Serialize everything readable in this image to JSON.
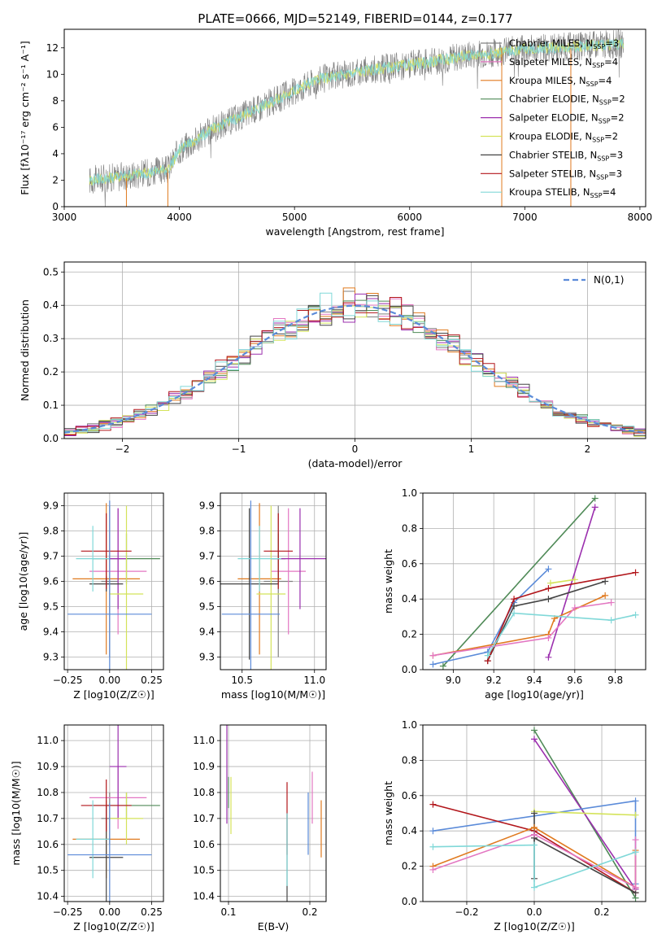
{
  "figure_title": "PLATE=0666, MJD=52149, FIBERID=0144, z=0.177",
  "palette": {
    "cb_miles": "#808080",
    "sp_miles": "#e377c2",
    "kr_miles": "#e07a1f",
    "cb_elodie": "#4f8a57",
    "sp_elodie": "#9b2fae",
    "kr_elodie": "#d4e35a",
    "cb_stelib": "#444444",
    "sp_stelib": "#b2161b",
    "kr_stelib": "#80d8d8",
    "normal": "#5b8bd9"
  },
  "legend_top": [
    {
      "label": "Chabrier MILES, N",
      "sub": "SSP",
      "tail": "=3",
      "key": "cb_miles"
    },
    {
      "label": "Salpeter MILES, N",
      "sub": "SSP",
      "tail": "=4",
      "key": "sp_miles"
    },
    {
      "label": "Kroupa MILES, N",
      "sub": "SSP",
      "tail": "=4",
      "key": "kr_miles"
    },
    {
      "label": "Chabrier ELODIE, N",
      "sub": "SSP",
      "tail": "=2",
      "key": "cb_elodie"
    },
    {
      "label": "Salpeter ELODIE, N",
      "sub": "SSP",
      "tail": "=2",
      "key": "sp_elodie"
    },
    {
      "label": "Kroupa ELODIE, N",
      "sub": "SSP",
      "tail": "=2",
      "key": "kr_elodie"
    },
    {
      "label": "Chabrier STELIB, N",
      "sub": "SSP",
      "tail": "=3",
      "key": "cb_stelib"
    },
    {
      "label": "Salpeter STELIB, N",
      "sub": "SSP",
      "tail": "=3",
      "key": "sp_stelib"
    },
    {
      "label": "Kroupa STELIB, N",
      "sub": "SSP",
      "tail": "=4",
      "key": "kr_stelib"
    }
  ],
  "chart_data": [
    {
      "type": "line",
      "xlabel": "wavelength [Angstrom, rest frame]",
      "ylabel": "Flux [fλ10⁻¹⁷ erg cm⁻² s⁻¹ A⁻¹]",
      "xlim": [
        3000,
        8050
      ],
      "ylim": [
        0,
        13.4
      ],
      "xticks": [
        3000,
        4000,
        5000,
        6000,
        7000,
        8000
      ],
      "yticks": [
        0,
        2,
        4,
        6,
        8,
        10,
        12
      ],
      "data_range": [
        3220,
        7860
      ],
      "continuum_anchors": [
        [
          3220,
          2.0
        ],
        [
          3500,
          2.3
        ],
        [
          3900,
          2.8
        ],
        [
          4000,
          4.3
        ],
        [
          4300,
          5.9
        ],
        [
          4700,
          7.5
        ],
        [
          5200,
          9.6
        ],
        [
          5700,
          10.4
        ],
        [
          6000,
          10.7
        ],
        [
          6500,
          11.4
        ],
        [
          7000,
          11.9
        ],
        [
          7860,
          12.3
        ]
      ],
      "note_lines": [
        [
          6800,
          0
        ],
        [
          7400,
          0
        ]
      ]
    },
    {
      "type": "histogram",
      "xlabel": "(data-model)/error",
      "ylabel": "Normed distribution",
      "xlim": [
        -2.5,
        2.5
      ],
      "ylim": [
        0,
        0.53
      ],
      "xticks": [
        -2,
        -1,
        0,
        1,
        2
      ],
      "yticks": [
        0.0,
        0.1,
        0.2,
        0.3,
        0.4,
        0.5
      ],
      "bin_width": 0.1,
      "legend_label": "N(0,1)",
      "grid": true
    },
    {
      "type": "scatter",
      "xlabel": "Z [log10(Z/Z☉)]",
      "ylabel": "age  [log10(age/yr)]",
      "xlim": [
        -0.27,
        0.32
      ],
      "ylim": [
        9.25,
        9.95
      ],
      "xticks": [
        -0.25,
        0.0,
        0.25
      ],
      "yticks": [
        9.3,
        9.4,
        9.5,
        9.6,
        9.7,
        9.8,
        9.9
      ],
      "grid": true,
      "points": [
        {
          "key": "cb_miles",
          "x": 0.0,
          "xe": 0.05,
          "y": 9.6,
          "ye": 0.3
        },
        {
          "key": "sp_miles",
          "x": 0.05,
          "xe": 0.17,
          "y": 9.64,
          "ye": 0.25
        },
        {
          "key": "kr_miles",
          "x": -0.02,
          "xe": 0.2,
          "y": 9.61,
          "ye": 0.3
        },
        {
          "key": "cb_elodie",
          "x": 0.1,
          "xe": 0.2,
          "y": 9.69,
          "ye": 0.1
        },
        {
          "key": "sp_elodie",
          "x": 0.05,
          "xe": 0.05,
          "y": 9.69,
          "ye": 0.2
        },
        {
          "key": "kr_elodie",
          "x": 0.1,
          "xe": 0.1,
          "y": 9.55,
          "ye": 0.35
        },
        {
          "key": "cb_stelib",
          "x": -0.02,
          "xe": 0.1,
          "y": 9.59,
          "ye": 0.03
        },
        {
          "key": "sp_stelib",
          "x": -0.02,
          "xe": 0.15,
          "y": 9.72,
          "ye": 0.15
        },
        {
          "key": "kr_stelib",
          "x": -0.1,
          "xe": 0.1,
          "y": 9.69,
          "ye": 0.13
        },
        {
          "key": "normal",
          "x": 0.0,
          "xe": 0.25,
          "y": 9.47,
          "ye": 0.45
        }
      ]
    },
    {
      "type": "scatter",
      "xlabel": "mass [log10(M/M☉)]",
      "ylabel": "",
      "xlim": [
        10.35,
        11.08
      ],
      "ylim": [
        9.25,
        9.95
      ],
      "xticks": [
        10.5,
        11.0
      ],
      "yticks": [
        9.3,
        9.4,
        9.5,
        9.6,
        9.7,
        9.8,
        9.9
      ],
      "grid": true,
      "points": [
        {
          "key": "cb_miles",
          "x": 10.75,
          "xe": 0.1,
          "y": 9.6,
          "ye": 0.3
        },
        {
          "key": "sp_miles",
          "x": 10.82,
          "xe": 0.12,
          "y": 9.64,
          "ye": 0.25
        },
        {
          "key": "kr_miles",
          "x": 10.62,
          "xe": 0.15,
          "y": 9.61,
          "ye": 0.3
        },
        {
          "key": "cb_elodie",
          "x": 10.75,
          "xe": 0.05,
          "y": 9.69,
          "ye": 0.1
        },
        {
          "key": "sp_elodie",
          "x": 10.9,
          "xe": 0.2,
          "y": 9.69,
          "ye": 0.2
        },
        {
          "key": "kr_elodie",
          "x": 10.7,
          "xe": 0.1,
          "y": 9.55,
          "ye": 0.35
        },
        {
          "key": "cb_stelib",
          "x": 10.55,
          "xe": 0.2,
          "y": 9.59,
          "ye": 0.3
        },
        {
          "key": "sp_stelib",
          "x": 10.75,
          "xe": 0.1,
          "y": 9.72,
          "ye": 0.15
        },
        {
          "key": "kr_stelib",
          "x": 10.62,
          "xe": 0.15,
          "y": 9.69,
          "ye": 0.13
        },
        {
          "key": "normal",
          "x": 10.56,
          "xe": 0.2,
          "y": 9.47,
          "ye": 0.45
        }
      ]
    },
    {
      "type": "line",
      "xlabel": "age  [log10(age/yr)]",
      "ylabel": "mass weight",
      "xlim": [
        8.85,
        9.95
      ],
      "ylim": [
        0,
        1
      ],
      "xticks": [
        9.0,
        9.2,
        9.4,
        9.6,
        9.8
      ],
      "yticks": [
        0.0,
        0.2,
        0.4,
        0.6,
        0.8,
        1.0
      ],
      "grid": true,
      "series": [
        {
          "key": "cb_elodie",
          "pts": [
            [
              8.95,
              0.02
            ],
            [
              9.7,
              0.97
            ]
          ]
        },
        {
          "key": "sp_elodie",
          "pts": [
            [
              9.47,
              0.07
            ],
            [
              9.7,
              0.92
            ]
          ]
        },
        {
          "key": "normal",
          "pts": [
            [
              8.9,
              0.03
            ],
            [
              9.17,
              0.1
            ],
            [
              9.3,
              0.38
            ],
            [
              9.47,
              0.57
            ]
          ]
        },
        {
          "key": "cb_stelib",
          "pts": [
            [
              9.17,
              0.05
            ],
            [
              9.3,
              0.36
            ],
            [
              9.47,
              0.4
            ],
            [
              9.75,
              0.5
            ]
          ]
        },
        {
          "key": "sp_stelib",
          "pts": [
            [
              9.17,
              0.05
            ],
            [
              9.3,
              0.4
            ],
            [
              9.47,
              0.46
            ],
            [
              9.9,
              0.55
            ]
          ]
        },
        {
          "key": "kr_elodie",
          "pts": [
            [
              9.48,
              0.49
            ],
            [
              9.6,
              0.51
            ]
          ]
        },
        {
          "key": "kr_miles",
          "pts": [
            [
              8.9,
              0.08
            ],
            [
              9.47,
              0.2
            ],
            [
              9.5,
              0.29
            ],
            [
              9.75,
              0.42
            ]
          ]
        },
        {
          "key": "sp_miles",
          "pts": [
            [
              8.9,
              0.08
            ],
            [
              9.47,
              0.18
            ],
            [
              9.6,
              0.35
            ],
            [
              9.78,
              0.38
            ]
          ]
        },
        {
          "key": "kr_stelib",
          "pts": [
            [
              9.17,
              0.08
            ],
            [
              9.3,
              0.32
            ],
            [
              9.78,
              0.28
            ],
            [
              9.9,
              0.31
            ]
          ]
        }
      ]
    },
    {
      "type": "scatter",
      "xlabel": "Z [log10(Z/Z☉)]",
      "ylabel": "mass [log10(M/M☉)]",
      "xlim": [
        -0.27,
        0.32
      ],
      "ylim": [
        10.38,
        11.06
      ],
      "xticks": [
        -0.25,
        0.0,
        0.25
      ],
      "yticks": [
        10.4,
        10.5,
        10.6,
        10.7,
        10.8,
        10.9,
        11.0
      ],
      "grid": true,
      "points": [
        {
          "key": "cb_miles",
          "x": 0.0,
          "xe": 0.05,
          "y": 10.7,
          "ye": 0.1
        },
        {
          "key": "sp_miles",
          "x": 0.05,
          "xe": 0.17,
          "y": 10.78,
          "ye": 0.12
        },
        {
          "key": "kr_miles",
          "x": -0.02,
          "xe": 0.2,
          "y": 10.62,
          "ye": 0.15
        },
        {
          "key": "cb_elodie",
          "x": 0.1,
          "xe": 0.2,
          "y": 10.75,
          "ye": 0.05
        },
        {
          "key": "sp_elodie",
          "x": 0.05,
          "xe": 0.05,
          "y": 10.9,
          "ye": 0.2
        },
        {
          "key": "kr_elodie",
          "x": 0.1,
          "xe": 0.1,
          "y": 10.7,
          "ye": 0.1
        },
        {
          "key": "cb_stelib",
          "x": -0.02,
          "xe": 0.1,
          "y": 10.55,
          "ye": 0.2
        },
        {
          "key": "sp_stelib",
          "x": -0.02,
          "xe": 0.15,
          "y": 10.75,
          "ye": 0.1
        },
        {
          "key": "kr_stelib",
          "x": -0.1,
          "xe": 0.1,
          "y": 10.62,
          "ye": 0.15
        },
        {
          "key": "normal",
          "x": 0.0,
          "xe": 0.25,
          "y": 10.56,
          "ye": 0.2
        }
      ]
    },
    {
      "type": "scatter",
      "xlabel": "E(B-V)",
      "ylabel": "",
      "xlim": [
        0.09,
        0.22
      ],
      "ylim": [
        10.38,
        11.06
      ],
      "xticks": [
        0.1,
        0.2
      ],
      "yticks": [
        10.4,
        10.5,
        10.6,
        10.7,
        10.8,
        10.9,
        11.0
      ],
      "grid": true,
      "points": [
        {
          "key": "sp_elodie",
          "x": 0.098,
          "xe": 0,
          "y": 10.9,
          "ye": 0.22
        },
        {
          "key": "cb_elodie",
          "x": 0.1,
          "xe": 0,
          "y": 10.8,
          "ye": 0.06
        },
        {
          "key": "kr_elodie",
          "x": 0.103,
          "xe": 0,
          "y": 10.75,
          "ye": 0.11
        },
        {
          "key": "cb_stelib",
          "x": 0.172,
          "xe": 0,
          "y": 10.55,
          "ye": 0.17
        },
        {
          "key": "sp_stelib",
          "x": 0.172,
          "xe": 0,
          "y": 10.7,
          "ye": 0.14
        },
        {
          "key": "kr_stelib",
          "x": 0.172,
          "xe": 0,
          "y": 10.58,
          "ye": 0.14
        },
        {
          "key": "normal",
          "x": 0.198,
          "xe": 0,
          "y": 10.68,
          "ye": 0.12
        },
        {
          "key": "sp_miles",
          "x": 0.203,
          "xe": 0,
          "y": 10.78,
          "ye": 0.1
        },
        {
          "key": "kr_miles",
          "x": 0.214,
          "xe": 0,
          "y": 10.66,
          "ye": 0.11
        }
      ]
    },
    {
      "type": "line",
      "xlabel": "Z [log10(Z/Z☉)]",
      "ylabel": "mass weight",
      "xlim": [
        -0.33,
        0.33
      ],
      "ylim": [
        0,
        1
      ],
      "xticks": [
        -0.2,
        0.0,
        0.2
      ],
      "yticks": [
        0.0,
        0.2,
        0.4,
        0.6,
        0.8,
        1.0
      ],
      "grid": true,
      "series": [
        {
          "key": "cb_elodie",
          "pts": [
            [
              0.0,
              0.97
            ],
            [
              0.3,
              0.02
            ]
          ]
        },
        {
          "key": "sp_elodie",
          "pts": [
            [
              0.0,
              0.92
            ],
            [
              0.3,
              0.07
            ]
          ]
        },
        {
          "key": "normal",
          "pts": [
            [
              -0.3,
              0.4
            ],
            [
              0.3,
              0.57
            ],
            [
              0.3,
              0.1
            ]
          ]
        },
        {
          "key": "kr_elodie",
          "pts": [
            [
              0.0,
              0.51
            ],
            [
              0.3,
              0.49
            ]
          ]
        },
        {
          "key": "sp_stelib",
          "pts": [
            [
              -0.3,
              0.55
            ],
            [
              0.0,
              0.4
            ],
            [
              0.3,
              0.05
            ]
          ]
        },
        {
          "key": "cb_stelib",
          "pts": [
            [
              0.0,
              0.5
            ],
            [
              0.0,
              0.13
            ],
            [
              0.0,
              0.36
            ],
            [
              0.3,
              0.05
            ]
          ]
        },
        {
          "key": "kr_miles",
          "pts": [
            [
              -0.3,
              0.2
            ],
            [
              0.0,
              0.42
            ],
            [
              0.3,
              0.08
            ],
            [
              0.3,
              0.29
            ]
          ]
        },
        {
          "key": "sp_miles",
          "pts": [
            [
              -0.3,
              0.18
            ],
            [
              0.0,
              0.38
            ],
            [
              0.3,
              0.08
            ],
            [
              0.3,
              0.35
            ]
          ]
        },
        {
          "key": "kr_stelib",
          "pts": [
            [
              -0.3,
              0.31
            ],
            [
              0.0,
              0.32
            ],
            [
              0.0,
              0.08
            ],
            [
              0.3,
              0.28
            ]
          ]
        }
      ]
    }
  ]
}
